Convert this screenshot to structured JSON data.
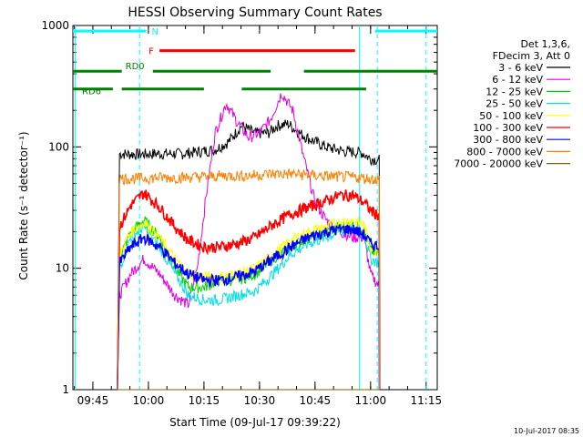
{
  "chart_data": {
    "type": "line",
    "title": "HESSI Observing Summary Count Rates",
    "xlabel": "Start Time (09-Jul-17 09:39:22)",
    "ylabel": "Count Rate (s⁻¹ detector⁻¹)",
    "footer": "10-Jul-2017 08:35",
    "yscale": "log",
    "xlim": [
      9.66,
      11.3
    ],
    "ylim": [
      1,
      1000
    ],
    "x_unit": "hours (UT)",
    "x_ticks": [
      {
        "t": 9.75,
        "label": "09:45"
      },
      {
        "t": 10.0,
        "label": "10:00"
      },
      {
        "t": 10.25,
        "label": "10:15"
      },
      {
        "t": 10.5,
        "label": "10:30"
      },
      {
        "t": 10.75,
        "label": "10:45"
      },
      {
        "t": 11.0,
        "label": "11:00"
      },
      {
        "t": 11.25,
        "label": "11:15"
      }
    ],
    "y_ticks": [
      {
        "v": 1,
        "label": "1"
      },
      {
        "v": 10,
        "label": "10"
      },
      {
        "v": 100,
        "label": "100"
      },
      {
        "v": 1000,
        "label": "1000"
      }
    ],
    "legend_header": [
      "Det 1,3,6,",
      "FDecim 3, Att 0"
    ],
    "legend_position": "right",
    "series": [
      {
        "name": "3 - 6 keV",
        "color": "#000000",
        "x": [
          9.86,
          9.87,
          9.95,
          10.05,
          10.15,
          10.24,
          10.3,
          10.36,
          10.42,
          10.48,
          10.54,
          10.58,
          10.63,
          10.68,
          10.73,
          10.8,
          10.88,
          10.96,
          11.0,
          11.04
        ],
        "y": [
          1,
          88,
          87,
          88,
          88,
          92,
          95,
          110,
          150,
          130,
          130,
          150,
          155,
          130,
          115,
          100,
          92,
          90,
          80,
          78
        ]
      },
      {
        "name": "6 - 12 keV",
        "color": "#e000e0",
        "x": [
          9.86,
          9.87,
          9.92,
          9.98,
          10.05,
          10.12,
          10.18,
          10.22,
          10.26,
          10.3,
          10.35,
          10.4,
          10.45,
          10.5,
          10.55,
          10.6,
          10.65,
          10.7,
          10.75,
          10.8,
          10.86,
          10.92,
          10.97,
          11.0,
          11.04
        ],
        "y": [
          1,
          6,
          9,
          12,
          9,
          6,
          5,
          10,
          40,
          130,
          230,
          160,
          120,
          130,
          170,
          280,
          200,
          80,
          35,
          25,
          20,
          18,
          18,
          9,
          7
        ]
      },
      {
        "name": "12 - 25 keV",
        "color": "#00d000",
        "x": [
          9.86,
          9.87,
          9.92,
          9.98,
          10.05,
          10.12,
          10.18,
          10.25,
          10.32,
          10.4,
          10.48,
          10.56,
          10.64,
          10.72,
          10.8,
          10.86,
          10.92,
          10.97,
          11.0,
          11.04
        ],
        "y": [
          1,
          12,
          20,
          25,
          18,
          10,
          7,
          7,
          8,
          8,
          9,
          12,
          15,
          18,
          20,
          22,
          23,
          21,
          14,
          13
        ]
      },
      {
        "name": "25 - 50 keV",
        "color": "#00e0e0",
        "x": [
          9.86,
          9.87,
          9.92,
          9.98,
          10.05,
          10.12,
          10.18,
          10.25,
          10.32,
          10.4,
          10.48,
          10.56,
          10.64,
          10.72,
          10.8,
          10.86,
          10.92,
          10.97,
          11.0,
          11.04
        ],
        "y": [
          1,
          10,
          18,
          22,
          15,
          9,
          6,
          5.5,
          5.5,
          6,
          6.5,
          9,
          13,
          16,
          18,
          20,
          21,
          19,
          12,
          11
        ]
      },
      {
        "name": "50 - 100 keV",
        "color": "#ffff00",
        "x": [
          9.86,
          9.87,
          9.92,
          9.98,
          10.05,
          10.12,
          10.18,
          10.25,
          10.32,
          10.4,
          10.48,
          10.56,
          10.64,
          10.72,
          10.8,
          10.86,
          10.92,
          10.97,
          11.0,
          11.04
        ],
        "y": [
          1,
          13,
          20,
          24,
          18,
          12,
          9,
          8.5,
          8.5,
          9,
          10,
          13,
          17,
          20,
          22,
          24,
          25,
          23,
          15,
          14
        ]
      },
      {
        "name": "100 - 300 keV",
        "color": "#ff0000",
        "x": [
          9.86,
          9.87,
          9.92,
          9.98,
          10.05,
          10.12,
          10.18,
          10.25,
          10.32,
          10.4,
          10.48,
          10.56,
          10.64,
          10.72,
          10.8,
          10.86,
          10.92,
          10.97,
          11.0,
          11.04
        ],
        "y": [
          1,
          22,
          33,
          42,
          32,
          22,
          17,
          15,
          15,
          16,
          18,
          23,
          28,
          32,
          36,
          40,
          40,
          35,
          30,
          27
        ]
      },
      {
        "name": "300 - 800 keV",
        "color": "#0000ff",
        "x": [
          9.86,
          9.87,
          9.92,
          9.98,
          10.05,
          10.12,
          10.18,
          10.25,
          10.32,
          10.4,
          10.48,
          10.56,
          10.64,
          10.72,
          10.8,
          10.86,
          10.92,
          10.97,
          11.0,
          11.04
        ],
        "y": [
          1,
          11,
          15,
          18,
          15,
          11,
          9,
          8,
          8,
          8.5,
          9.5,
          12,
          15,
          18,
          20,
          21,
          21,
          19,
          16,
          15
        ]
      },
      {
        "name": "800 - 7000 keV",
        "color": "#ff8000",
        "x": [
          9.86,
          9.87,
          9.95,
          10.05,
          10.15,
          10.25,
          10.35,
          10.45,
          10.55,
          10.65,
          10.75,
          10.85,
          10.95,
          11.04
        ],
        "y": [
          1,
          55,
          55,
          56,
          56,
          57,
          58,
          58,
          60,
          60,
          58,
          57,
          56,
          54
        ]
      },
      {
        "name": "7000 - 20000 keV",
        "color": "#806000",
        "x": [
          9.86,
          11.04
        ],
        "y": [
          1,
          1
        ]
      }
    ],
    "flag_bars": [
      {
        "label": "N",
        "color": "#00ffff",
        "y": 900,
        "segments": [
          [
            9.66,
            9.99
          ],
          [
            11.02,
            11.3
          ]
        ]
      },
      {
        "label": "F",
        "color": "#ff0000",
        "y": 620,
        "segments": [
          [
            10.05,
            10.93
          ]
        ]
      },
      {
        "label": "RD0",
        "color": "#008000",
        "y": 420,
        "segments": [
          [
            9.66,
            9.88
          ],
          [
            10.02,
            10.55
          ]
        ]
      },
      {
        "label": "RD6",
        "color": "#008000",
        "y": 300,
        "segments": [
          [
            9.66,
            9.84
          ],
          [
            9.88,
            10.25
          ],
          [
            10.42,
            10.98
          ]
        ]
      },
      {
        "label": "",
        "color": "#008000",
        "y": 420,
        "segments": [
          [
            10.7,
            11.3
          ]
        ]
      }
    ],
    "vlines": [
      {
        "t": 9.67,
        "color": "#00ffff",
        "style": "solid"
      },
      {
        "t": 9.96,
        "color": "#00ffff",
        "style": "dashed"
      },
      {
        "t": 10.95,
        "color": "#00ffff",
        "style": "solid"
      },
      {
        "t": 11.03,
        "color": "#00ffff",
        "style": "dashed"
      },
      {
        "t": 11.25,
        "color": "#00ffff",
        "style": "dashed"
      }
    ]
  }
}
